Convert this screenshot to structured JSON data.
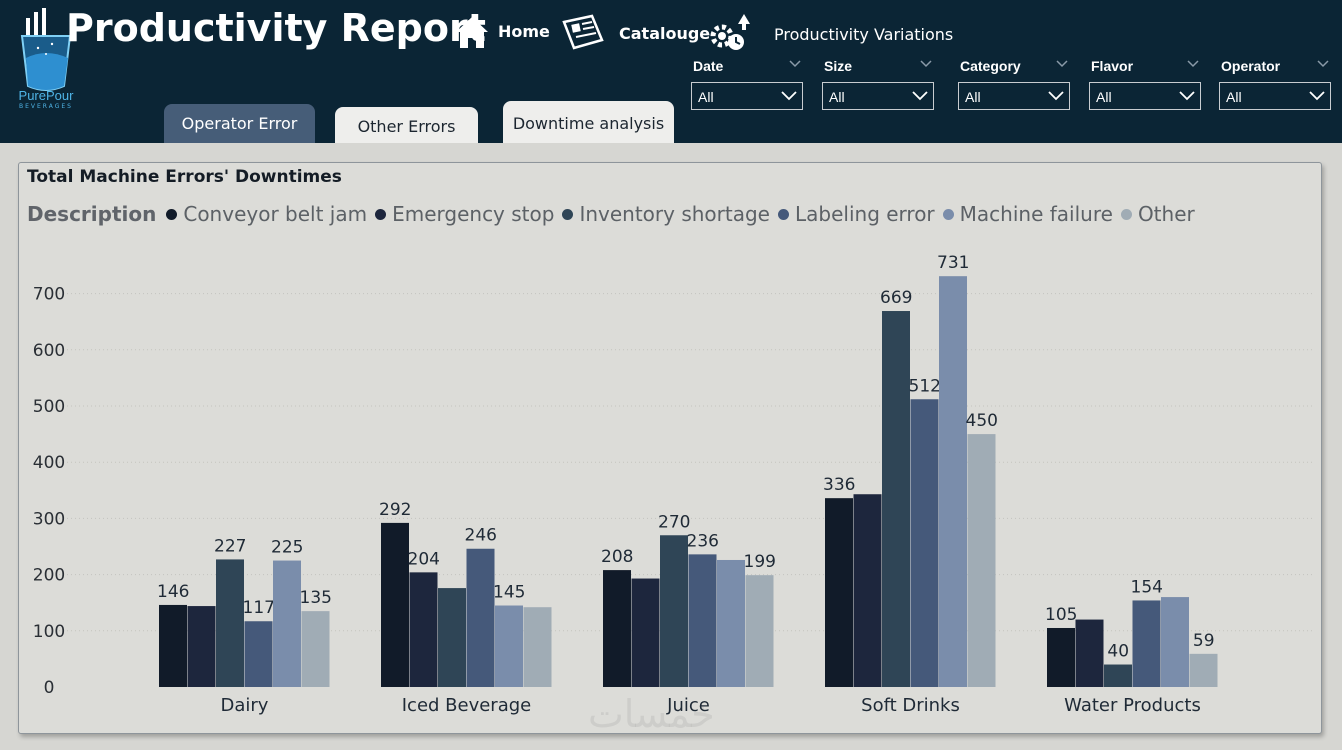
{
  "header": {
    "title": "Productivity Report",
    "brand": "PurePour",
    "brand_sub": "BEVERAGES",
    "nav": [
      {
        "label": "Home",
        "icon": "home-icon"
      },
      {
        "label": "Catalouge",
        "icon": "catalogue-icon"
      },
      {
        "label": "Productivity Variations",
        "icon": "gears-icon"
      }
    ]
  },
  "filters": [
    {
      "label": "Date",
      "value": "All"
    },
    {
      "label": "Size",
      "value": "All"
    },
    {
      "label": "Category",
      "value": "All"
    },
    {
      "label": "Flavor",
      "value": "All"
    },
    {
      "label": "Operator",
      "value": "All"
    }
  ],
  "tabs": [
    {
      "label": "Operator Error",
      "state": "inactive-dark"
    },
    {
      "label": "Other Errors",
      "state": "inactive-light"
    },
    {
      "label": "Downtime analysis",
      "state": "active"
    }
  ],
  "chart": {
    "legend_heading": "Description"
  },
  "watermark": "خمسات",
  "colors": {
    "header_bg": "#0b2535",
    "page_bg": "#d6d6d2",
    "series": [
      "#111b29",
      "#1d263d",
      "#2f4556",
      "#45597a",
      "#7a8dab",
      "#a0acb5"
    ]
  },
  "chart_data": {
    "type": "bar",
    "title": "Total Machine Errors' Downtimes",
    "categories": [
      "Dairy",
      "Iced Beverage",
      "Juice",
      "Soft Drinks",
      "Water Products"
    ],
    "series": [
      {
        "name": "Conveyor belt jam",
        "values": [
          146,
          292,
          208,
          336,
          105
        ],
        "labeled": [
          true,
          true,
          true,
          true,
          true
        ]
      },
      {
        "name": "Emergency stop",
        "values": [
          144,
          204,
          193,
          343,
          120
        ],
        "labeled": [
          false,
          true,
          false,
          false,
          false
        ]
      },
      {
        "name": "Inventory shortage",
        "values": [
          227,
          176,
          270,
          669,
          40
        ],
        "labeled": [
          true,
          false,
          true,
          true,
          true
        ]
      },
      {
        "name": "Labeling error",
        "values": [
          117,
          246,
          236,
          512,
          154
        ],
        "labeled": [
          true,
          true,
          true,
          true,
          true
        ]
      },
      {
        "name": "Machine failure",
        "values": [
          225,
          145,
          226,
          731,
          160
        ],
        "labeled": [
          true,
          true,
          false,
          true,
          false
        ]
      },
      {
        "name": "Other",
        "values": [
          135,
          142,
          199,
          450,
          59
        ],
        "labeled": [
          true,
          false,
          true,
          true,
          true
        ]
      }
    ],
    "yticks": [
      0,
      100,
      200,
      300,
      400,
      500,
      600,
      700
    ],
    "ylim": [
      0,
      760
    ],
    "xlabel": "",
    "ylabel": "",
    "grid": true,
    "legend_position": "top-left"
  }
}
